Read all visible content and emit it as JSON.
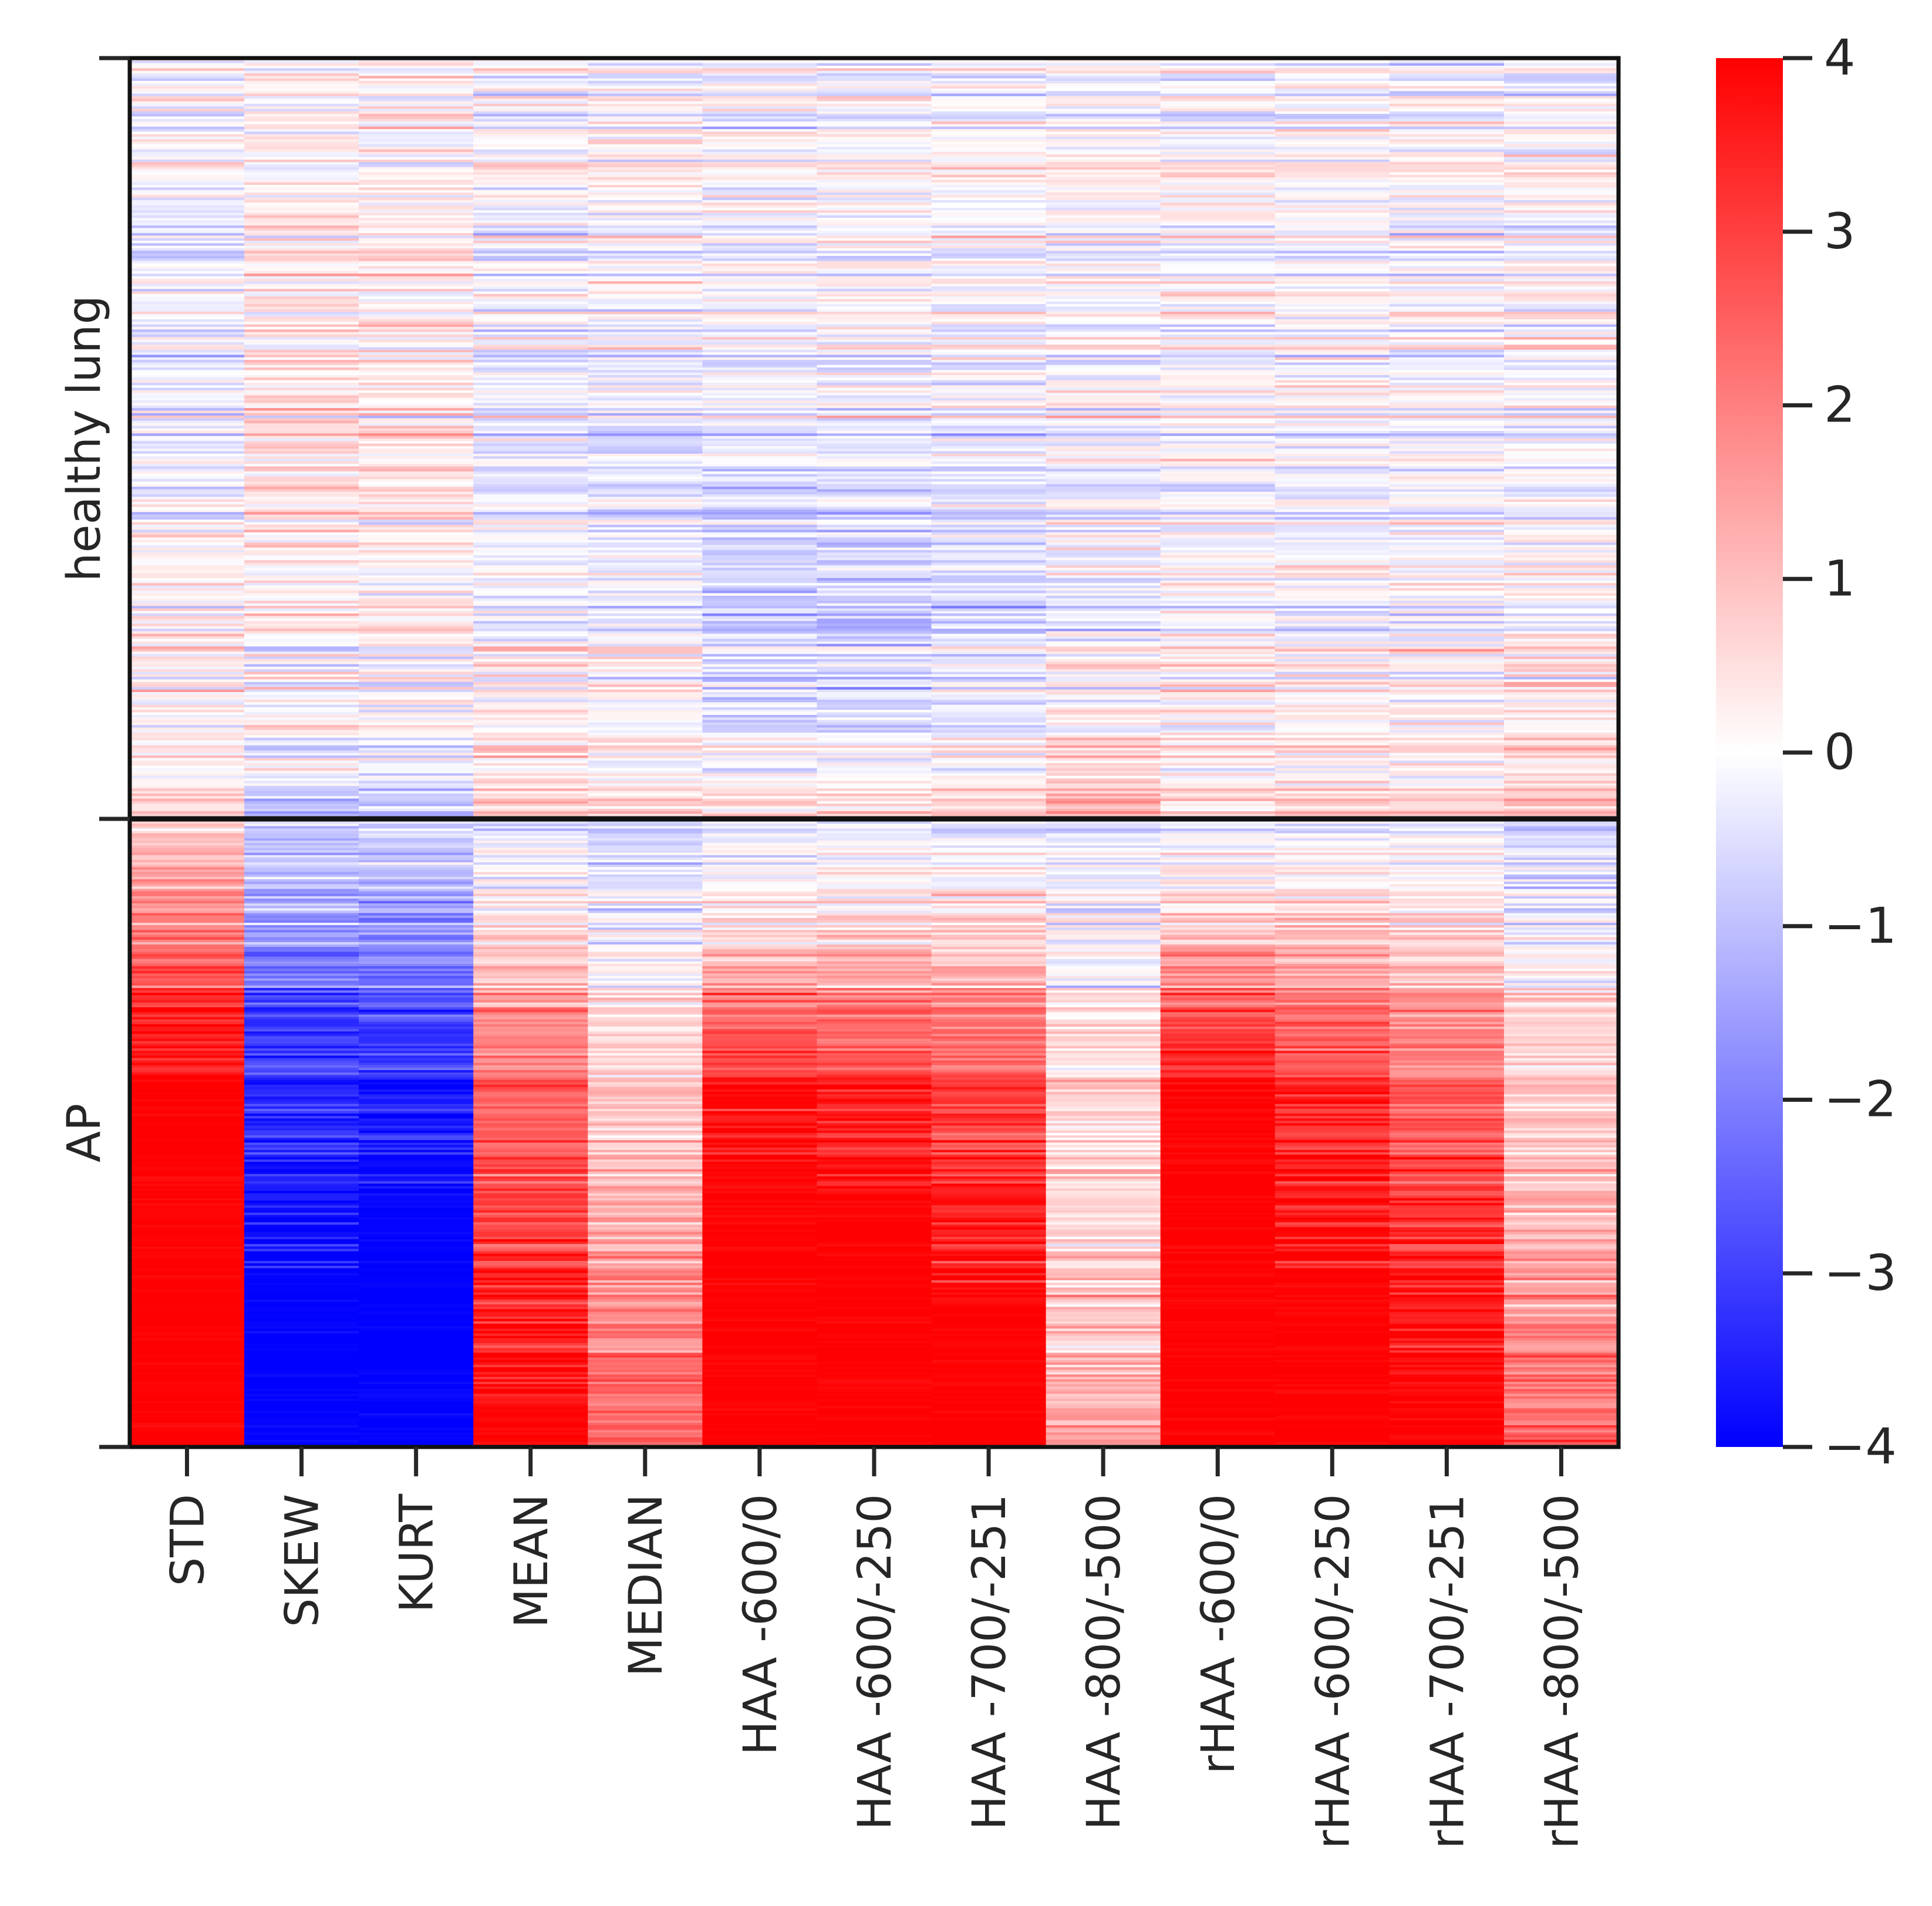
{
  "chart_data": {
    "type": "heatmap",
    "title": "",
    "columns": [
      "STD",
      "SKEW",
      "KURT",
      "MEAN",
      "MEDIAN",
      "HAA -600/0",
      "HAA -600/-250",
      "HAA -700/-251",
      "HAA -800/-500",
      "rHAA -600/0",
      "rHAA -600/-250",
      "rHAA -700/-251",
      "rHAA -800/-500"
    ],
    "groups": [
      "healthy lung",
      "AP"
    ],
    "colorbar": {
      "min": -4,
      "max": 4,
      "ticks": [
        4,
        3,
        2,
        1,
        0,
        -1,
        -2,
        -3,
        -4
      ],
      "tick_labels": [
        "4",
        "3",
        "2",
        "1",
        "0",
        "−1",
        "−2",
        "−3",
        "−4"
      ],
      "low_color": "#0000ff",
      "mid_color": "#ffffff",
      "high_color": "#ff0000"
    },
    "group_profiles": {
      "healthy lung": {
        "description_values_by_row_fraction": [
          {
            "at": 0.0,
            "values": [
              0.0,
              0.0,
              0.0,
              0.0,
              0.0,
              0.0,
              0.0,
              0.0,
              0.0,
              0.0,
              0.0,
              0.0,
              0.0
            ]
          },
          {
            "at": 0.25,
            "values": [
              -0.3,
              0.3,
              0.3,
              -0.1,
              0.0,
              0.0,
              0.0,
              0.0,
              0.0,
              0.0,
              0.0,
              0.0,
              0.0
            ]
          },
          {
            "at": 0.5,
            "values": [
              -0.2,
              0.4,
              0.4,
              -0.2,
              -0.3,
              -0.3,
              -0.2,
              -0.2,
              0.0,
              0.0,
              0.0,
              0.0,
              0.0
            ]
          },
          {
            "at": 0.7,
            "values": [
              0.0,
              0.3,
              0.3,
              -0.3,
              -0.4,
              -0.9,
              -0.9,
              -0.7,
              -0.3,
              -0.2,
              -0.2,
              -0.2,
              0.0
            ]
          },
          {
            "at": 0.88,
            "values": [
              0.2,
              0.2,
              0.2,
              0.2,
              0.0,
              -0.5,
              -0.5,
              -0.3,
              0.2,
              0.1,
              0.1,
              0.1,
              0.3
            ]
          },
          {
            "at": 1.0,
            "values": [
              0.8,
              -1.2,
              -1.2,
              1.0,
              0.8,
              0.8,
              0.8,
              1.0,
              1.6,
              0.8,
              0.8,
              0.8,
              1.4
            ]
          }
        ]
      },
      "AP": {
        "description_values_by_row_fraction": [
          {
            "at": 0.0,
            "values": [
              0.8,
              -0.6,
              -0.6,
              -0.4,
              -0.6,
              -0.3,
              -0.3,
              -0.3,
              -0.4,
              -0.2,
              -0.2,
              -0.2,
              -0.6
            ]
          },
          {
            "at": 0.15,
            "values": [
              1.8,
              -1.2,
              -1.2,
              0.0,
              -0.4,
              0.2,
              0.3,
              0.3,
              -0.3,
              0.5,
              0.5,
              0.4,
              -0.4
            ]
          },
          {
            "at": 0.3,
            "values": [
              3.2,
              -2.8,
              -2.6,
              1.5,
              0.4,
              2.0,
              2.0,
              1.8,
              0.3,
              2.5,
              2.0,
              1.5,
              0.4
            ]
          },
          {
            "at": 0.45,
            "values": [
              4.0,
              -3.2,
              -3.6,
              2.5,
              0.8,
              3.8,
              3.5,
              3.0,
              0.6,
              4.0,
              3.3,
              2.5,
              0.8
            ]
          },
          {
            "at": 0.65,
            "values": [
              4.0,
              -3.8,
              -4.0,
              3.0,
              1.3,
              4.0,
              4.0,
              3.6,
              0.7,
              4.0,
              3.8,
              3.3,
              1.2
            ]
          },
          {
            "at": 0.8,
            "values": [
              4.0,
              -4.0,
              -4.0,
              3.7,
              2.0,
              4.0,
              4.0,
              4.0,
              1.0,
              4.0,
              4.0,
              3.8,
              1.8
            ]
          },
          {
            "at": 1.0,
            "values": [
              4.0,
              -4.0,
              -4.0,
              4.0,
              2.5,
              4.0,
              4.0,
              4.0,
              1.4,
              4.0,
              4.0,
              4.0,
              2.6
            ]
          }
        ]
      }
    },
    "grid": false,
    "legend": "colorbar-right"
  }
}
